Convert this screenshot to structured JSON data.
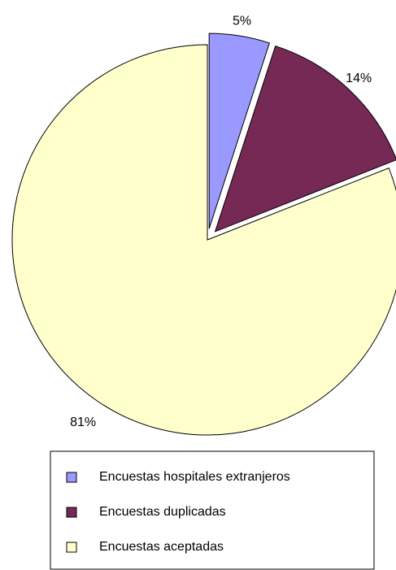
{
  "chart_data": {
    "type": "pie",
    "categories": [
      "Encuestas hospitales extranjeros",
      "Encuestas duplicadas",
      "Encuestas aceptadas"
    ],
    "values": [
      5,
      14,
      81
    ],
    "value_labels": [
      "5%",
      "14%",
      "81%"
    ],
    "colors": [
      "#9999ff",
      "#772955",
      "#ffffcc"
    ],
    "legend": "bottom"
  }
}
